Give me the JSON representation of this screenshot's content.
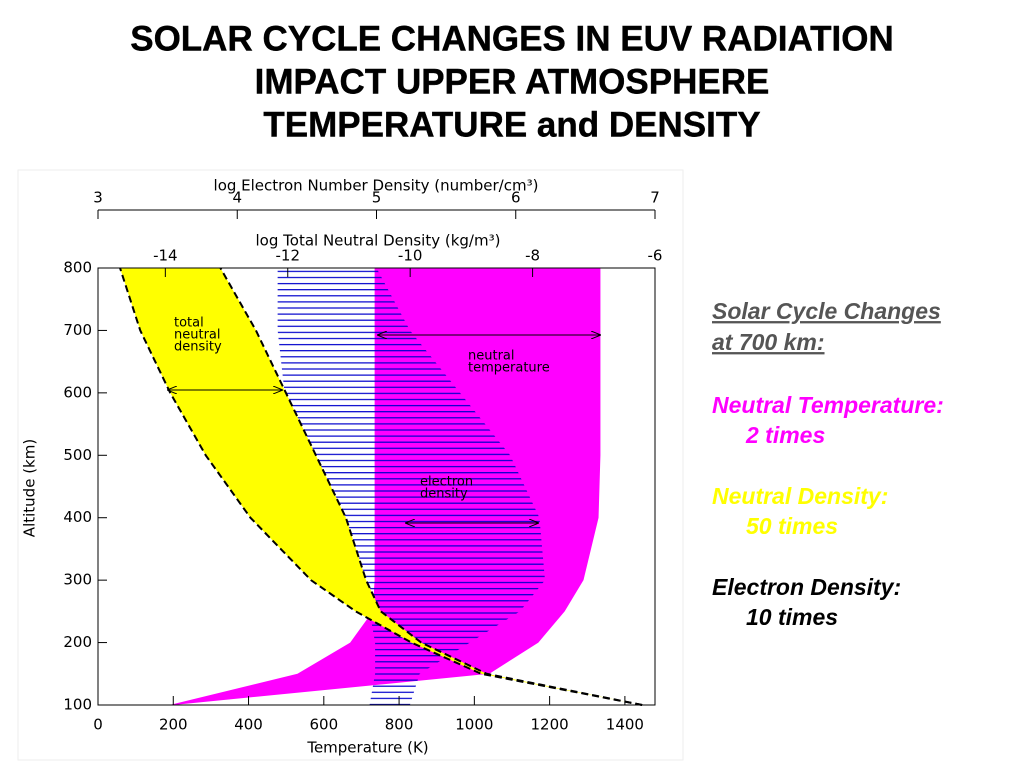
{
  "title": [
    "SOLAR CYCLE CHANGES IN EUV RADIATION",
    "IMPACT UPPER ATMOSPHERE",
    "TEMPERATURE and DENSITY"
  ],
  "chart_data": {
    "type": "band",
    "xlabel": "Temperature (K)",
    "ylabel": "Altitude (km)",
    "x2label": "log Total Neutral Density (kg/m³)",
    "x3label": "log Electron Number Density (number/cm³)",
    "xlim": [
      0,
      1480
    ],
    "xticks": [
      0,
      200,
      400,
      600,
      800,
      1000,
      1200,
      1400
    ],
    "x2lim": [
      -15.1,
      -6
    ],
    "x2ticks": [
      -14,
      -12,
      -10,
      -8,
      -6
    ],
    "x3lim": [
      3,
      7
    ],
    "x3ticks": [
      3,
      4,
      5,
      6,
      7
    ],
    "ylim": [
      100,
      800
    ],
    "yticks": [
      100,
      200,
      300,
      400,
      500,
      600,
      700,
      800
    ],
    "altitude": [
      100,
      150,
      200,
      250,
      300,
      400,
      500,
      600,
      700,
      800
    ],
    "series": [
      {
        "label": [
          "neutral",
          "temperature"
        ],
        "color": "#ff00ff",
        "axis": "x",
        "lower": [
          190,
          530,
          670,
          730,
          735,
          735,
          735,
          735,
          735,
          735
        ],
        "upper": [
          200,
          1040,
          1170,
          1240,
          1290,
          1330,
          1335,
          1335,
          1335,
          1335
        ]
      },
      {
        "label": [
          "electron",
          "density"
        ],
        "color": "#0000cc",
        "axis": "x3",
        "lower": [
          4.95,
          4.99,
          4.99,
          4.95,
          4.88,
          4.67,
          4.45,
          4.34,
          4.29,
          4.29
        ],
        "upper": [
          5.24,
          5.31,
          5.67,
          6.03,
          6.21,
          6.17,
          5.96,
          5.6,
          5.24,
          5.0
        ]
      },
      {
        "label": [
          "total",
          "neutral",
          "density"
        ],
        "color": "#ffff00",
        "axis": "x2",
        "lower": [
          -6.21,
          -8.84,
          -9.98,
          -10.89,
          -11.62,
          -12.61,
          -13.34,
          -13.92,
          -14.41,
          -14.74
        ],
        "upper": [
          -6.21,
          -8.75,
          -9.82,
          -10.48,
          -10.72,
          -11.05,
          -11.54,
          -12.03,
          -12.52,
          -13.1
        ]
      }
    ]
  },
  "notes": {
    "heading": [
      "Solar Cycle Changes",
      "at 700 km:"
    ],
    "items": [
      {
        "label": "Neutral Temperature:",
        "value": "2 times",
        "color": "#ff00ff"
      },
      {
        "label": "Neutral Density:",
        "value": "50 times",
        "color": "#ffff00"
      },
      {
        "label": "Electron Density:",
        "value": "10 times",
        "color": "#000000"
      }
    ]
  }
}
